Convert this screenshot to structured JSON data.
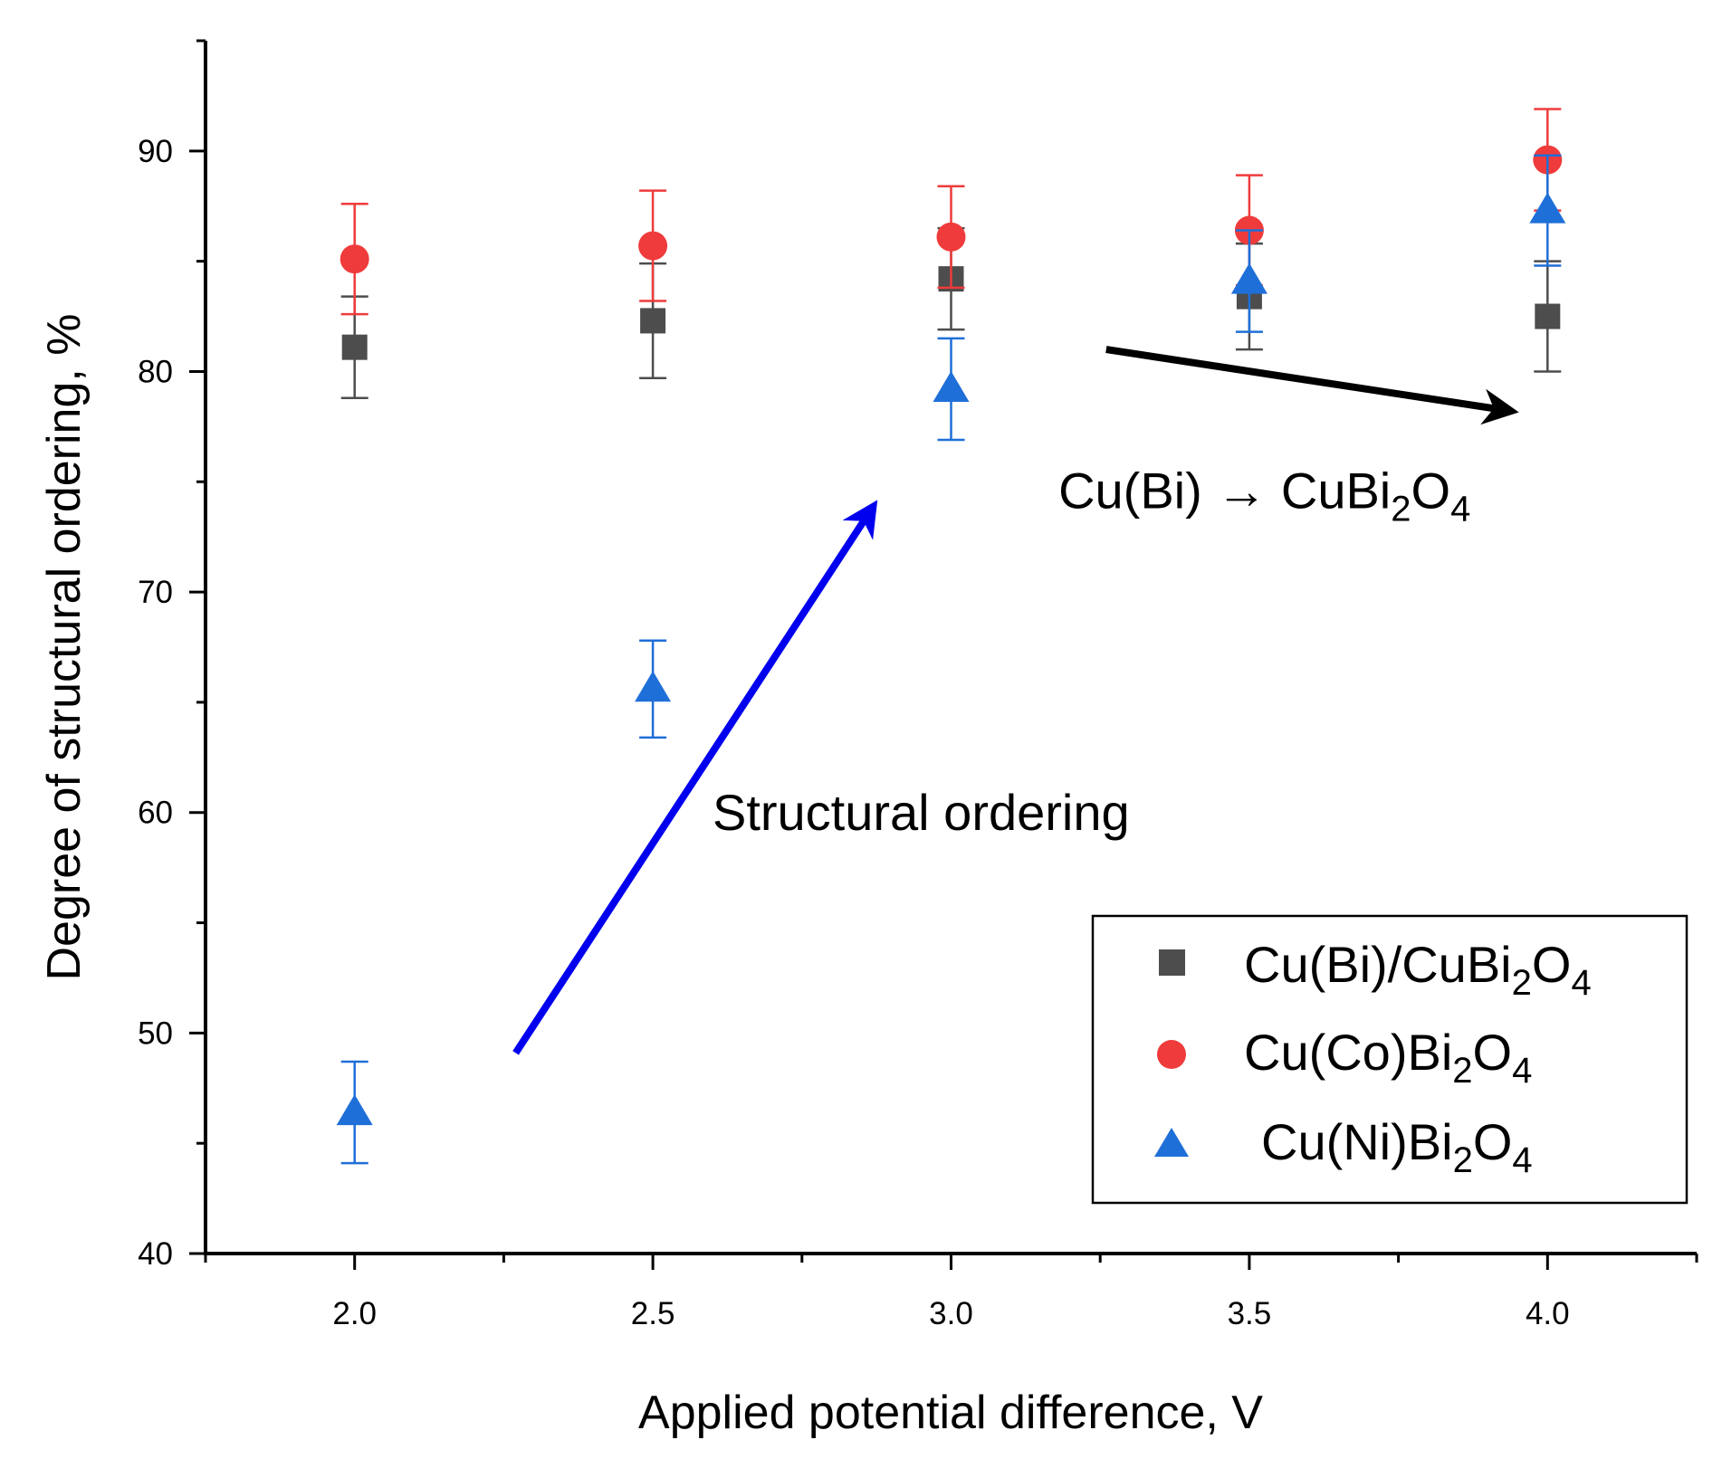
{
  "chart_data": {
    "type": "scatter",
    "title": "",
    "xlabel": "Applied potential difference, V",
    "ylabel": "Degree of structural ordering, %",
    "xlim": [
      1.75,
      4.25
    ],
    "ylim": [
      40,
      95
    ],
    "x_ticks": [
      "2.0",
      "2.5",
      "3.0",
      "3.5",
      "4.0"
    ],
    "y_ticks": [
      "40",
      "50",
      "60",
      "70",
      "80",
      "90"
    ],
    "grid": false,
    "legend_position": "bottom-right",
    "series": [
      {
        "name_main": "Cu(Bi)/CuBi",
        "name_sub1": "2",
        "name_mid": "O",
        "name_sub2": "4",
        "marker": "square",
        "color": "#4d4d4d",
        "x": [
          2.0,
          2.5,
          3.0,
          3.5,
          4.0
        ],
        "y": [
          81.1,
          82.3,
          84.2,
          83.4,
          82.5
        ],
        "err": [
          2.3,
          2.6,
          2.3,
          2.4,
          2.5
        ]
      },
      {
        "name_main": "Cu(Co)Bi",
        "name_sub1": "2",
        "name_mid": "O",
        "name_sub2": "4",
        "marker": "circle",
        "color": "#ef3b3b",
        "x": [
          2.0,
          2.5,
          3.0,
          3.5,
          4.0
        ],
        "y": [
          85.1,
          85.7,
          86.1,
          86.4,
          89.6
        ],
        "err": [
          2.5,
          2.5,
          2.3,
          2.5,
          2.3
        ]
      },
      {
        "name_main": "Cu(Ni)Bi",
        "name_sub1": "2",
        "name_mid": "O",
        "name_sub2": "4",
        "marker": "triangle",
        "color": "#1f6fd8",
        "x": [
          2.0,
          2.5,
          3.0,
          3.5,
          4.0
        ],
        "y": [
          46.4,
          65.6,
          79.2,
          84.1,
          87.3
        ],
        "err": [
          2.3,
          2.2,
          2.3,
          2.3,
          2.5
        ]
      }
    ],
    "annotations": [
      {
        "text": "Structural ordering",
        "arrow_color": "#0000ee",
        "arrow_from": [
          2.27,
          49.1
        ],
        "arrow_to": [
          2.87,
          73.9
        ],
        "text_x": 2.6,
        "text_y": 59.2
      },
      {
        "text_main": "Cu(Bi) → CuBi",
        "text_sub1": "2",
        "text_mid": "O",
        "text_sub2": "4",
        "arrow_color": "#000000",
        "arrow_from": [
          3.26,
          81.0
        ],
        "arrow_to": [
          3.94,
          78.2
        ],
        "text_x": 3.18,
        "text_y": 73.8
      }
    ]
  }
}
